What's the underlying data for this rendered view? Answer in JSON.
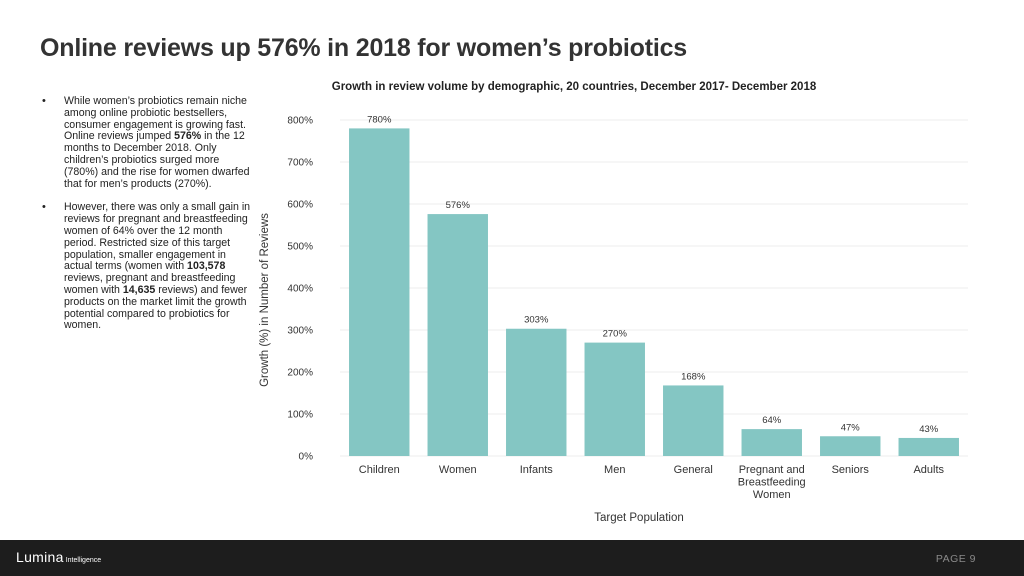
{
  "slide": {
    "title": "Online reviews up 576% in 2018 for women’s probiotics",
    "bullets": [
      {
        "parts": [
          "While women’s probiotics remain niche among online probiotic bestsellers, consumer engagement is growing fast. Online reviews jumped ",
          {
            "b": "576%"
          },
          " in the 12 months to December 2018. Only children’s probiotics surged more (780%) and the rise for women dwarfed that for men’s products (270%)."
        ]
      },
      {
        "parts": [
          "However, there was only a small gain in reviews for pregnant and breastfeeding women of 64% over the 12 month period. Restricted size of this target population, smaller engagement in actual terms (women with ",
          {
            "b": "103,578"
          },
          " reviews, pregnant and breastfeeding women with ",
          {
            "b": "14,635"
          },
          " reviews) and fewer products on the market limit the growth potential compared to probiotics for women."
        ]
      }
    ]
  },
  "footer": {
    "logo_main": "Lumina",
    "logo_sub": "Intelligence",
    "page_label": "PAGE 9"
  },
  "chart_data": {
    "type": "bar",
    "title": "Growth in review volume by demographic, 20 countries, December 2017- December 2018",
    "xlabel": "Target Population",
    "ylabel": "Growth (%) in Number of Reviews",
    "categories": [
      "Children",
      "Women",
      "Infants",
      "Men",
      "General",
      "Pregnant and Breastfeeding Women",
      "Seniors",
      "Adults"
    ],
    "category_lines": [
      [
        "Children"
      ],
      [
        "Women"
      ],
      [
        "Infants"
      ],
      [
        "Men"
      ],
      [
        "General"
      ],
      [
        "Pregnant and",
        "Breastfeeding",
        "Women"
      ],
      [
        "Seniors"
      ],
      [
        "Adults"
      ]
    ],
    "values": [
      780,
      576,
      303,
      270,
      168,
      64,
      47,
      43
    ],
    "data_labels": [
      "780%",
      "576%",
      "303%",
      "270%",
      "168%",
      "64%",
      "47%",
      "43%"
    ],
    "ylim": [
      0,
      800
    ],
    "yticks": [
      0,
      100,
      200,
      300,
      400,
      500,
      600,
      700,
      800
    ],
    "ytick_labels": [
      "0%",
      "100%",
      "200%",
      "300%",
      "400%",
      "500%",
      "600%",
      "700%",
      "800%"
    ],
    "bar_color": "#84c6c3",
    "grid": true,
    "legend": "none"
  }
}
